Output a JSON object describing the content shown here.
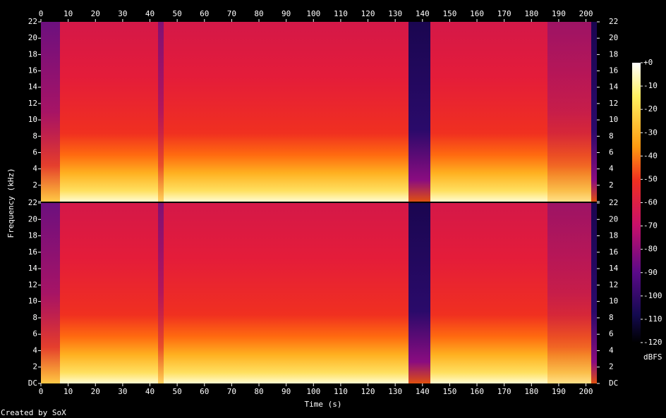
{
  "chart_data": {
    "type": "spectrogram",
    "xlabel": "Time (s)",
    "ylabel": "Frequency (kHz)",
    "xlim": [
      0,
      204
    ],
    "xticks": [
      0,
      10,
      20,
      30,
      40,
      50,
      60,
      70,
      80,
      90,
      100,
      110,
      120,
      130,
      140,
      150,
      160,
      170,
      180,
      190,
      200
    ],
    "ylim": [
      0,
      22
    ],
    "yticks": [
      {
        "value": 0,
        "label": "DC"
      },
      2,
      4,
      6,
      8,
      10,
      12,
      14,
      16,
      18,
      20,
      22
    ],
    "colorbar": {
      "label": "dBFS",
      "lim": [
        -120,
        0
      ],
      "ticks": [
        {
          "value": 0,
          "label": "+0"
        },
        -10,
        -20,
        -30,
        -40,
        -50,
        -60,
        -70,
        -80,
        -90,
        -100,
        -110,
        -120
      ]
    },
    "credit": "Created by SoX"
  }
}
